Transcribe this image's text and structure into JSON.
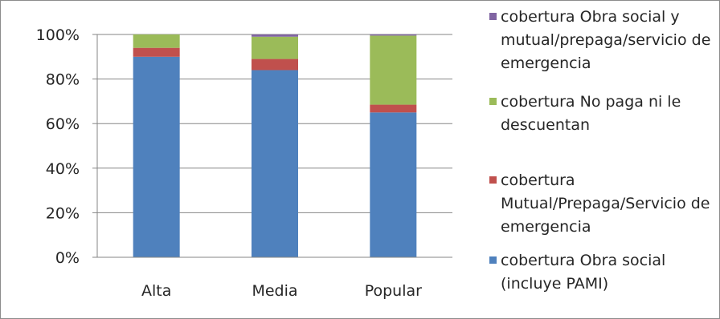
{
  "chart_data": {
    "type": "bar",
    "stacked": true,
    "categories": [
      "Alta",
      "Media",
      "Popular"
    ],
    "yticks": [
      "0%",
      "20%",
      "40%",
      "60%",
      "80%",
      "100%"
    ],
    "ylim": [
      0,
      100
    ],
    "legend_position": "right",
    "series": [
      {
        "name": "cobertura Obra social (incluye PAMI)",
        "color": "#4f81bd",
        "values": [
          90,
          84,
          65
        ]
      },
      {
        "name": "cobertura Mutual/Prepaga/Servicio de emergencia",
        "color": "#c0504d",
        "values": [
          4,
          5,
          3.5
        ]
      },
      {
        "name": "cobertura No paga ni le descuentan",
        "color": "#9bbb59",
        "values": [
          6,
          10,
          31
        ]
      },
      {
        "name": "cobertura Obra social y mutual/prepaga/servicio de emergencia",
        "color": "#8064a2",
        "values": [
          0,
          1,
          0.5
        ]
      }
    ]
  },
  "legend": {
    "items": [
      {
        "text": "cobertura Obra social y mutual/prepaga/servicio de emergencia",
        "color": "#8064a2"
      },
      {
        "text": "cobertura No paga ni le descuentan",
        "color": "#9bbb59"
      },
      {
        "text": "cobertura Mutual/Prepaga/Servicio de emergencia",
        "color": "#c0504d"
      },
      {
        "text": "cobertura Obra social (incluye PAMI)",
        "color": "#4f81bd"
      }
    ]
  }
}
